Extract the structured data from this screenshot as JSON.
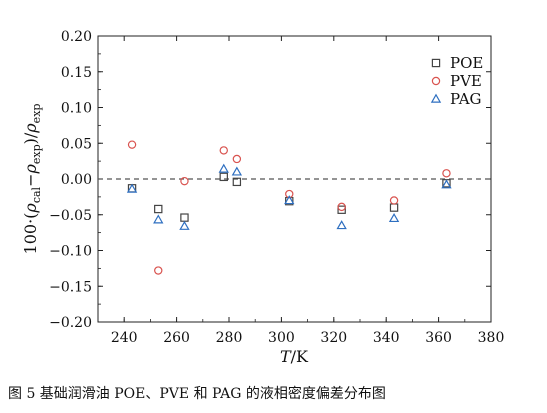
{
  "chart_data": {
    "type": "scatter",
    "title": "",
    "xlabel": "T/K",
    "ylabel": "100·(ρcal−ρexp)/ρexp",
    "xlim": [
      230,
      380
    ],
    "ylim": [
      -0.2,
      0.2
    ],
    "xticks": [
      240,
      260,
      280,
      300,
      320,
      340,
      360,
      380
    ],
    "yticks": [
      0.2,
      0.15,
      0.1,
      0.05,
      0.0,
      -0.05,
      -0.1,
      -0.15,
      -0.2
    ],
    "xtick_labels": [
      "240",
      "260",
      "280",
      "300",
      "320",
      "340",
      "360",
      "380"
    ],
    "ytick_labels": [
      "0.20",
      "0.15",
      "0.10",
      "0.05",
      "0.00",
      "−0.05",
      "−0.10",
      "−0.15",
      "−0.20"
    ],
    "reference_line": 0.0,
    "legend_position": "top-right",
    "series": [
      {
        "name": "POE",
        "marker": "square",
        "color": "#444444",
        "points": [
          {
            "x": 243,
            "y": -0.013
          },
          {
            "x": 253,
            "y": -0.042
          },
          {
            "x": 263,
            "y": -0.054
          },
          {
            "x": 278,
            "y": 0.003
          },
          {
            "x": 283,
            "y": -0.004
          },
          {
            "x": 303,
            "y": -0.031
          },
          {
            "x": 323,
            "y": -0.043
          },
          {
            "x": 343,
            "y": -0.04
          },
          {
            "x": 363,
            "y": -0.006
          }
        ]
      },
      {
        "name": "PVE",
        "marker": "circle",
        "color": "#d9534f",
        "points": [
          {
            "x": 243,
            "y": 0.048
          },
          {
            "x": 253,
            "y": -0.128
          },
          {
            "x": 263,
            "y": -0.003
          },
          {
            "x": 278,
            "y": 0.04
          },
          {
            "x": 283,
            "y": 0.028
          },
          {
            "x": 303,
            "y": -0.021
          },
          {
            "x": 323,
            "y": -0.039
          },
          {
            "x": 343,
            "y": -0.03
          },
          {
            "x": 363,
            "y": 0.008
          }
        ]
      },
      {
        "name": "PAG",
        "marker": "triangle",
        "color": "#2e6fc0",
        "points": [
          {
            "x": 243,
            "y": -0.014
          },
          {
            "x": 253,
            "y": -0.057
          },
          {
            "x": 263,
            "y": -0.066
          },
          {
            "x": 278,
            "y": 0.014
          },
          {
            "x": 283,
            "y": 0.01
          },
          {
            "x": 303,
            "y": -0.03
          },
          {
            "x": 323,
            "y": -0.065
          },
          {
            "x": 343,
            "y": -0.055
          },
          {
            "x": 363,
            "y": -0.008
          }
        ]
      }
    ]
  },
  "caption": "图 5   基础润滑油 POE、PVE 和 PAG 的液相密度偏差分布图"
}
